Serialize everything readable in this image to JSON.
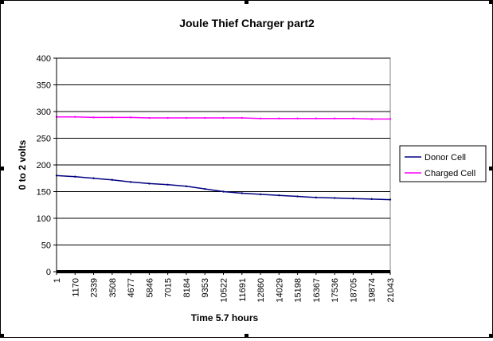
{
  "chart_data": {
    "type": "line",
    "title": "Joule Thief Charger part2",
    "xlabel": "Time 5.7 hours",
    "ylabel": "0 to 2 volts",
    "ylim": [
      0,
      400
    ],
    "yticks": [
      0,
      50,
      100,
      150,
      200,
      250,
      300,
      350,
      400
    ],
    "xticks": [
      "1",
      "1170",
      "2339",
      "3508",
      "4677",
      "5846",
      "7015",
      "8184",
      "9353",
      "10522",
      "11691",
      "12860",
      "14029",
      "15198",
      "16367",
      "17536",
      "18705",
      "19874",
      "21043"
    ],
    "x_range": [
      1,
      21043
    ],
    "grid": "horizontal",
    "legend_position": "right",
    "series": [
      {
        "name": "Donor Cell",
        "color": "#000080",
        "x": [
          1,
          1170,
          2339,
          3508,
          4677,
          5846,
          7015,
          8184,
          9353,
          10522,
          11691,
          12860,
          14029,
          15198,
          16367,
          17536,
          18705,
          19874,
          21043
        ],
        "values": [
          180,
          178,
          175,
          172,
          168,
          165,
          163,
          160,
          155,
          150,
          147,
          145,
          143,
          141,
          139,
          138,
          137,
          136,
          135
        ]
      },
      {
        "name": "Charged Cell",
        "color": "#FF00FF",
        "x": [
          1,
          1170,
          2339,
          3508,
          4677,
          5846,
          7015,
          8184,
          9353,
          10522,
          11691,
          12860,
          14029,
          15198,
          16367,
          17536,
          18705,
          19874,
          21043
        ],
        "values": [
          290,
          290,
          289,
          289,
          289,
          288,
          288,
          288,
          288,
          288,
          288,
          287,
          287,
          287,
          287,
          287,
          287,
          286,
          286
        ]
      }
    ]
  }
}
